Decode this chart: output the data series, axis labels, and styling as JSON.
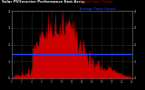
{
  "title": "Solar PV/Inverter Performance East Array",
  "legend_actual": "Actual Power Output",
  "legend_avg": "Average Power Output",
  "bg_color": "#000000",
  "plot_bg": "#000000",
  "bar_color": "#cc0000",
  "avg_line_color": "#2244ff",
  "avg_line_value": 0.36,
  "ylim": [
    0,
    1.0
  ],
  "grid_color": "#888888",
  "num_points": 144,
  "seed": 12
}
